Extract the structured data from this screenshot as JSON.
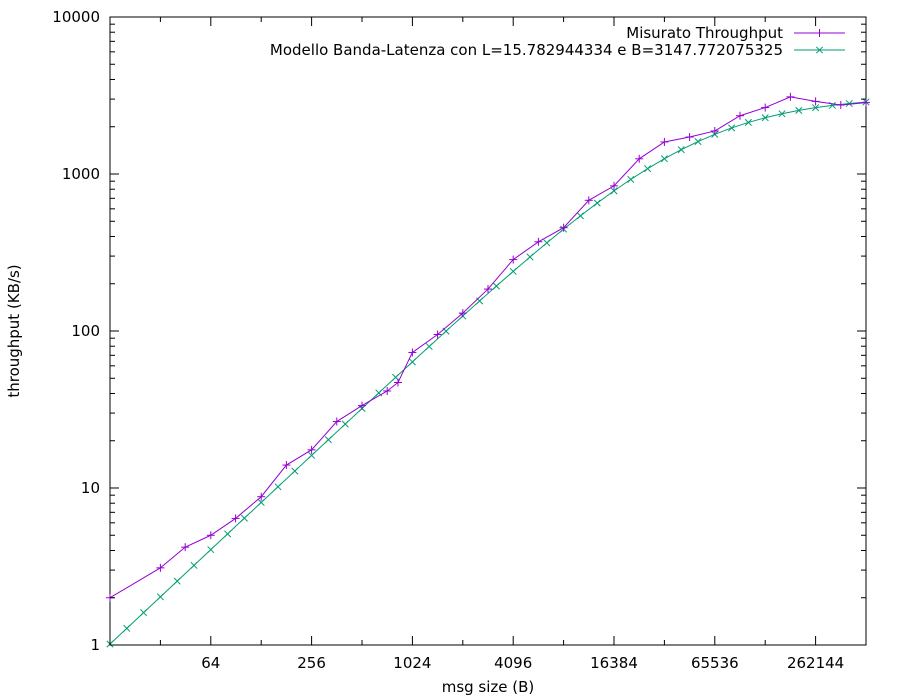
{
  "chart_data": {
    "type": "line",
    "title": "",
    "xlabel": "msg size (B)",
    "ylabel": "throughput (KB/s)",
    "x_scale": "log2",
    "y_scale": "log10",
    "xlim": [
      16,
      524288
    ],
    "ylim": [
      1,
      10000
    ],
    "x_ticks": [
      {
        "value": 64,
        "label": "64"
      },
      {
        "value": 256,
        "label": "256"
      },
      {
        "value": 1024,
        "label": "1024"
      },
      {
        "value": 4096,
        "label": "4096"
      },
      {
        "value": 16384,
        "label": "16384"
      },
      {
        "value": 65536,
        "label": "65536"
      },
      {
        "value": 262144,
        "label": "262144"
      }
    ],
    "y_ticks": [
      {
        "value": 1,
        "label": "1"
      },
      {
        "value": 10,
        "label": "10"
      },
      {
        "value": 100,
        "label": "100"
      },
      {
        "value": 1000,
        "label": "1000"
      },
      {
        "value": 10000,
        "label": "10000"
      }
    ],
    "grid": false,
    "legend_position": "top-right",
    "series": [
      {
        "name": "Misurato Throughput",
        "color": "#9400d3",
        "marker": "plus",
        "points": [
          [
            16,
            2.0
          ],
          [
            32,
            3.1
          ],
          [
            45,
            4.2
          ],
          [
            64,
            5.0
          ],
          [
            90,
            6.4
          ],
          [
            128,
            8.8
          ],
          [
            181,
            14.0
          ],
          [
            256,
            17.5
          ],
          [
            362,
            26.5
          ],
          [
            512,
            33.5
          ],
          [
            724,
            41.5
          ],
          [
            840,
            47.0
          ],
          [
            1024,
            73.0
          ],
          [
            1448,
            95.0
          ],
          [
            2048,
            130.0
          ],
          [
            2896,
            185.0
          ],
          [
            4096,
            285.0
          ],
          [
            5793,
            370.0
          ],
          [
            8192,
            455.0
          ],
          [
            11585,
            680.0
          ],
          [
            16384,
            840.0
          ],
          [
            23170,
            1250.0
          ],
          [
            32768,
            1600.0
          ],
          [
            46341,
            1720.0
          ],
          [
            65536,
            1880.0
          ],
          [
            92682,
            2350.0
          ],
          [
            131072,
            2650.0
          ],
          [
            185364,
            3100.0
          ],
          [
            262144,
            2900.0
          ],
          [
            370728,
            2750.0
          ],
          [
            524288,
            2850.0
          ]
        ]
      },
      {
        "name": "Modello Banda-Latenza con L=15.782944334 e B=3147.772075325",
        "color": "#009e73",
        "marker": "cross",
        "model": {
          "L": 15.782944334,
          "B": 3147.772075325,
          "start": 16,
          "end": 524288,
          "points_per_octave": 3
        }
      }
    ]
  }
}
